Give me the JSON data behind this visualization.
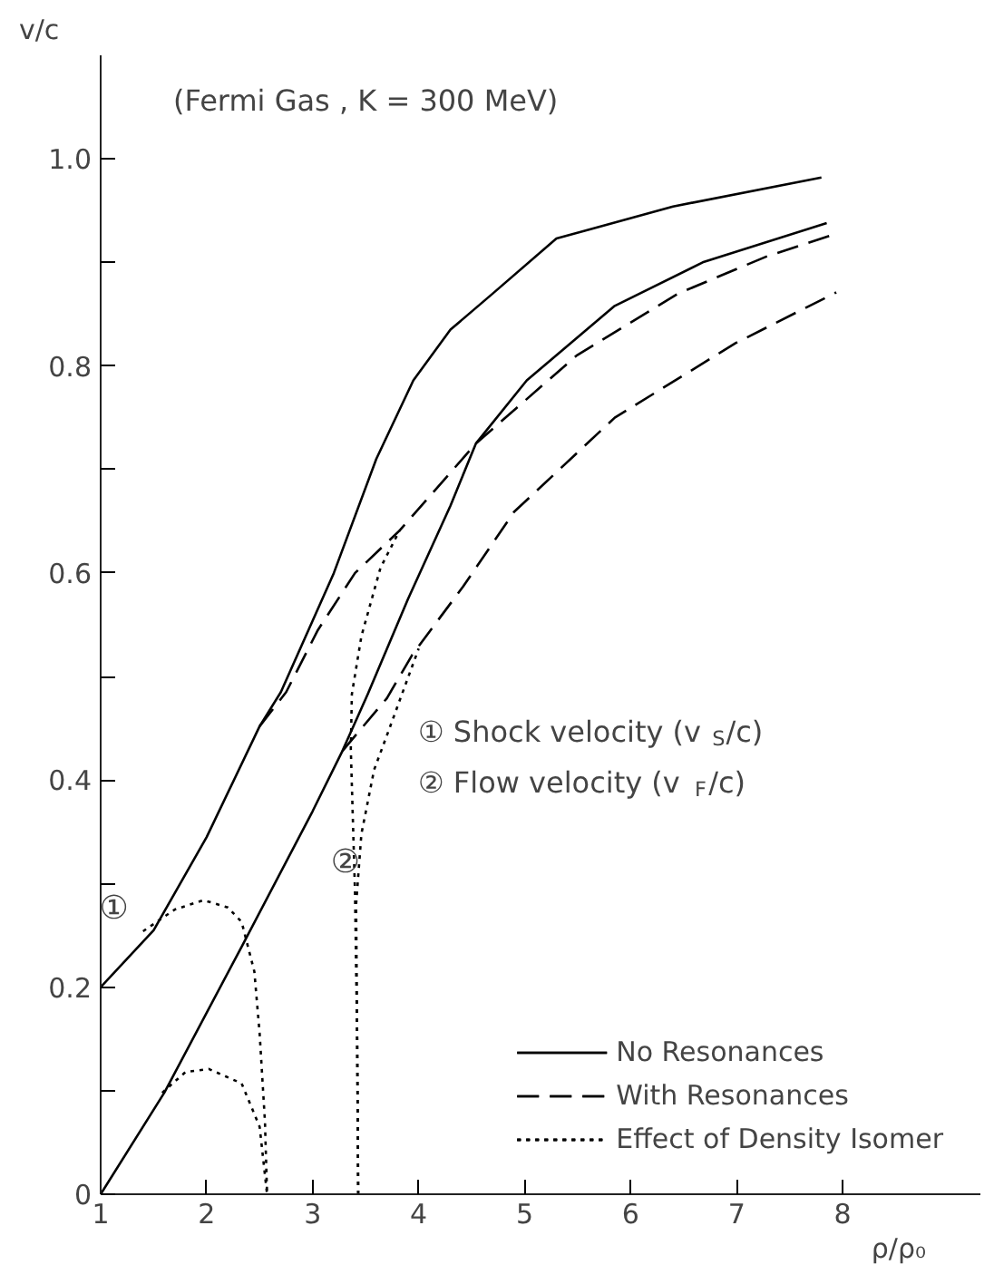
{
  "chart_data": {
    "type": "line",
    "title": "(Fermi Gas , K = 300 MeV)",
    "xlabel": "ρ/ρ₀",
    "ylabel": "v/c",
    "xlim": [
      1,
      9.3
    ],
    "ylim": [
      0,
      1.1
    ],
    "xticks": [
      1,
      2,
      3,
      4,
      5,
      6,
      7,
      8
    ],
    "yticks": [
      0,
      {
        "value": 0.1,
        "label": null
      },
      0.2,
      {
        "value": 0.3,
        "label": null
      },
      0.4,
      {
        "value": 0.5,
        "label": null
      },
      0.6,
      {
        "value": 0.7,
        "label": null
      },
      0.8,
      {
        "value": 0.9,
        "label": null
      },
      {
        "value": 1.0,
        "label": "1.0"
      }
    ],
    "grid": false,
    "legend": "bottom right",
    "marker": "none",
    "series": [
      {
        "name": "No Resonances",
        "color": "#000000",
        "line_style": "solid",
        "x": [
          1,
          1.5,
          2,
          2.5,
          2.7,
          3.2,
          3.6,
          3.95,
          4.3,
          4.7,
          5.3,
          6.4,
          7.8
        ],
        "values": [
          0.2,
          0.255,
          0.345,
          0.452,
          0.485,
          0.6,
          0.71,
          0.786,
          0.835,
          0.87,
          0.923,
          0.954,
          0.982
        ]
      },
      {
        "color": "#000000",
        "line_style": "solid",
        "x": [
          1,
          1.6,
          2.33,
          3.0,
          3.28,
          3.52,
          3.9,
          4.3,
          4.54,
          5.02,
          5.85,
          6.68,
          7.85
        ],
        "values": [
          0,
          0.098,
          0.239,
          0.37,
          0.428,
          0.483,
          0.575,
          0.665,
          0.725,
          0.786,
          0.858,
          0.9,
          0.938
        ]
      },
      {
        "name": "With Resonances",
        "color": "#000000",
        "line_style": "dashed",
        "x": [
          2.5,
          2.75,
          3.05,
          3.4,
          3.82,
          4.54,
          5.49,
          6.45,
          7.29,
          7.89
        ],
        "values": [
          0.452,
          0.485,
          0.545,
          0.6,
          0.641,
          0.725,
          0.81,
          0.87,
          0.906,
          0.926
        ]
      },
      {
        "color": "#000000",
        "line_style": "dashed",
        "x": [
          3.28,
          3.7,
          3.94,
          4.42,
          4.9,
          5.85,
          6.99,
          7.94
        ],
        "values": [
          0.428,
          0.479,
          0.521,
          0.587,
          0.659,
          0.75,
          0.822,
          0.871
        ]
      },
      {
        "name": "Effect of Density Isomer",
        "color": "#000000",
        "line_style": "dotted",
        "x": [
          1.4,
          1.7,
          1.97,
          2.2,
          2.33,
          2.45,
          2.5,
          2.55,
          2.57
        ],
        "values": [
          0.254,
          0.275,
          0.284,
          0.277,
          0.263,
          0.215,
          0.155,
          0.07,
          0
        ]
      },
      {
        "color": "#000000",
        "line_style": "dotted",
        "x": [
          1.58,
          1.8,
          2.02,
          2.33,
          2.5,
          2.57
        ],
        "values": [
          0.098,
          0.118,
          0.121,
          0.107,
          0.065,
          0
        ]
      },
      {
        "color": "#000000",
        "line_style": "dotted",
        "x": [
          3.43,
          3.42,
          3.4,
          3.36,
          3.37,
          3.46,
          3.64,
          3.82
        ],
        "values": [
          0,
          0.15,
          0.29,
          0.43,
          0.483,
          0.539,
          0.605,
          0.641
        ]
      },
      {
        "color": "#000000",
        "line_style": "dotted",
        "x": [
          3.43,
          3.42,
          3.41,
          3.46,
          3.58,
          3.7,
          4.0
        ],
        "values": [
          0,
          0.15,
          0.28,
          0.348,
          0.41,
          0.443,
          0.527
        ]
      }
    ],
    "annotations": [
      "①",
      "②",
      "① Shock velocity (v$_{S}$/c)",
      "② Flow velocity (v$_{F}$/c)"
    ]
  }
}
